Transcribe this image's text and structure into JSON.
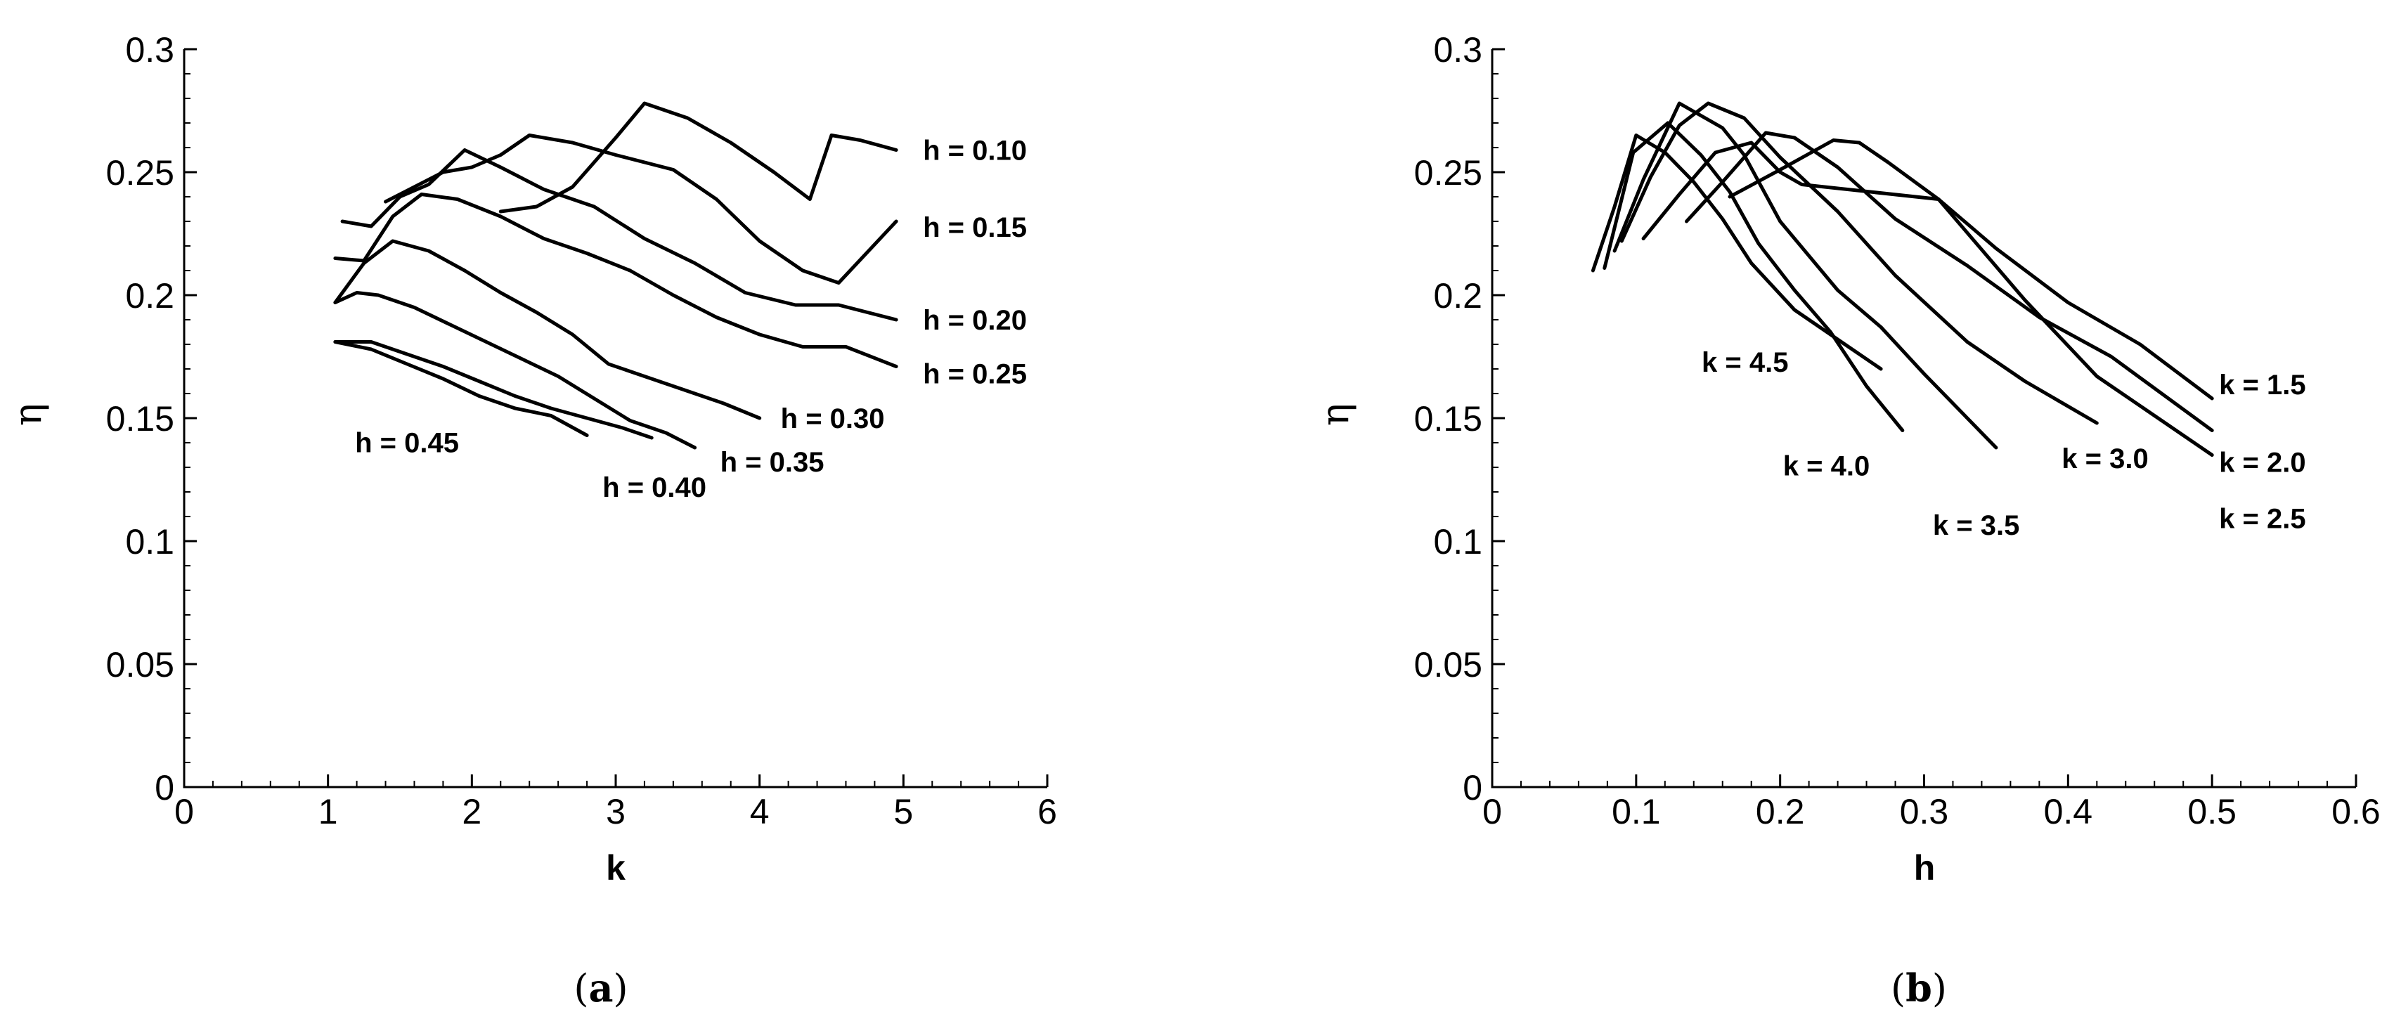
{
  "chart_data": [
    {
      "type": "line",
      "panel": "a",
      "caption": {
        "open": "(",
        "letter": "a",
        "close": ")"
      },
      "xlabel": "k",
      "ylabel": "η",
      "xlim": [
        0,
        6
      ],
      "ylim": [
        0,
        0.3
      ],
      "x_ticks": [
        "0",
        "1",
        "2",
        "3",
        "4",
        "5",
        "6"
      ],
      "y_ticks": [
        "0",
        "0.05",
        "0.1",
        "0.15",
        "0.2",
        "0.25",
        "0.3"
      ],
      "grid": false,
      "series": [
        {
          "name": "h = 0.10",
          "label": "h = 0.10",
          "x": [
            2.2,
            2.45,
            2.7,
            3.0,
            3.2,
            3.5,
            3.8,
            4.1,
            4.35,
            4.5,
            4.7,
            4.95
          ],
          "y": [
            0.234,
            0.236,
            0.244,
            0.264,
            0.278,
            0.272,
            0.262,
            0.25,
            0.239,
            0.265,
            0.263,
            0.259
          ]
        },
        {
          "name": "h = 0.15",
          "label": "h = 0.15",
          "x": [
            1.4,
            1.6,
            1.8,
            2.0,
            2.2,
            2.4,
            2.7,
            3.0,
            3.4,
            3.7,
            4.0,
            4.3,
            4.55,
            4.95
          ],
          "y": [
            0.238,
            0.244,
            0.25,
            0.252,
            0.257,
            0.265,
            0.262,
            0.257,
            0.251,
            0.239,
            0.222,
            0.21,
            0.205,
            0.23
          ]
        },
        {
          "name": "h = 0.20",
          "label": "h = 0.20",
          "x": [
            1.1,
            1.3,
            1.5,
            1.7,
            1.95,
            2.2,
            2.5,
            2.85,
            3.2,
            3.55,
            3.9,
            4.25,
            4.55,
            4.95
          ],
          "y": [
            0.23,
            0.228,
            0.24,
            0.245,
            0.259,
            0.252,
            0.243,
            0.236,
            0.223,
            0.213,
            0.201,
            0.196,
            0.196,
            0.19
          ]
        },
        {
          "name": "h = 0.25",
          "label": "h = 0.25",
          "x": [
            1.05,
            1.25,
            1.45,
            1.65,
            1.9,
            2.2,
            2.5,
            2.8,
            3.1,
            3.4,
            3.7,
            4.0,
            4.3,
            4.6,
            4.95
          ],
          "y": [
            0.215,
            0.214,
            0.232,
            0.241,
            0.239,
            0.232,
            0.223,
            0.217,
            0.21,
            0.2,
            0.191,
            0.184,
            0.179,
            0.179,
            0.171
          ]
        },
        {
          "name": "h = 0.30",
          "label": "h = 0.30",
          "x": [
            1.05,
            1.25,
            1.45,
            1.7,
            1.95,
            2.2,
            2.45,
            2.7,
            2.95,
            3.2,
            3.5,
            3.75,
            4.0
          ],
          "y": [
            0.197,
            0.213,
            0.222,
            0.218,
            0.21,
            0.201,
            0.193,
            0.184,
            0.172,
            0.167,
            0.161,
            0.156,
            0.15
          ]
        },
        {
          "name": "h = 0.35",
          "label": "h = 0.35",
          "x": [
            1.05,
            1.2,
            1.35,
            1.6,
            1.85,
            2.1,
            2.35,
            2.6,
            2.85,
            3.1,
            3.35,
            3.55
          ],
          "y": [
            0.197,
            0.201,
            0.2,
            0.195,
            0.188,
            0.181,
            0.174,
            0.167,
            0.158,
            0.149,
            0.144,
            0.138
          ]
        },
        {
          "name": "h = 0.40",
          "label": "h = 0.40",
          "x": [
            1.05,
            1.3,
            1.55,
            1.8,
            2.05,
            2.3,
            2.55,
            2.8,
            3.05,
            3.25
          ],
          "y": [
            0.181,
            0.181,
            0.176,
            0.171,
            0.165,
            0.159,
            0.154,
            0.15,
            0.146,
            0.142
          ]
        },
        {
          "name": "h = 0.45",
          "label": "h = 0.45",
          "x": [
            1.05,
            1.3,
            1.55,
            1.8,
            2.05,
            2.3,
            2.55,
            2.8
          ],
          "y": [
            0.181,
            0.178,
            0.172,
            0.166,
            0.159,
            0.154,
            0.151,
            0.143
          ]
        }
      ]
    },
    {
      "type": "line",
      "panel": "b",
      "caption": {
        "open": "(",
        "letter": "b",
        "close": ")"
      },
      "xlabel": "h",
      "ylabel": "η",
      "xlim": [
        0,
        0.6
      ],
      "ylim": [
        0,
        0.3
      ],
      "x_ticks": [
        "0",
        "0.1",
        "0.2",
        "0.3",
        "0.4",
        "0.5",
        "0.6"
      ],
      "y_ticks": [
        "0",
        "0.05",
        "0.1",
        "0.15",
        "0.2",
        "0.25",
        "0.3"
      ],
      "grid": false,
      "series": [
        {
          "name": "k = 1.5",
          "label": "k = 1.5",
          "x": [
            0.165,
            0.2,
            0.237,
            0.255,
            0.275,
            0.31,
            0.35,
            0.4,
            0.45,
            0.5
          ],
          "y": [
            0.24,
            0.251,
            0.263,
            0.262,
            0.254,
            0.239,
            0.219,
            0.197,
            0.18,
            0.158
          ]
        },
        {
          "name": "k = 2.0",
          "label": "k = 2.0",
          "x": [
            0.135,
            0.16,
            0.19,
            0.21,
            0.24,
            0.28,
            0.33,
            0.38,
            0.43,
            0.5
          ],
          "y": [
            0.23,
            0.246,
            0.266,
            0.264,
            0.252,
            0.231,
            0.212,
            0.191,
            0.175,
            0.145
          ]
        },
        {
          "name": "k = 2.5",
          "label": "k = 2.5",
          "x": [
            0.105,
            0.13,
            0.155,
            0.18,
            0.2,
            0.215,
            0.31,
            0.37,
            0.42,
            0.5
          ],
          "y": [
            0.223,
            0.241,
            0.258,
            0.262,
            0.25,
            0.245,
            0.239,
            0.198,
            0.167,
            0.135
          ]
        },
        {
          "name": "k = 3.0",
          "label": "k = 3.0",
          "x": [
            0.09,
            0.11,
            0.13,
            0.15,
            0.175,
            0.2,
            0.24,
            0.28,
            0.33,
            0.37,
            0.42
          ],
          "y": [
            0.222,
            0.248,
            0.269,
            0.278,
            0.272,
            0.256,
            0.234,
            0.208,
            0.181,
            0.165,
            0.148
          ]
        },
        {
          "name": "k = 3.5",
          "label": "k = 3.5",
          "x": [
            0.085,
            0.105,
            0.13,
            0.16,
            0.175,
            0.2,
            0.24,
            0.27,
            0.3,
            0.32,
            0.35
          ],
          "y": [
            0.218,
            0.247,
            0.278,
            0.268,
            0.257,
            0.23,
            0.202,
            0.187,
            0.168,
            0.156,
            0.138
          ]
        },
        {
          "name": "k = 4.0",
          "label": "k = 4.0",
          "x": [
            0.078,
            0.098,
            0.122,
            0.145,
            0.165,
            0.185,
            0.21,
            0.235,
            0.26,
            0.285
          ],
          "y": [
            0.211,
            0.258,
            0.27,
            0.257,
            0.242,
            0.221,
            0.202,
            0.185,
            0.163,
            0.145
          ]
        },
        {
          "name": "k = 4.5",
          "label": "k = 4.5",
          "x": [
            0.07,
            0.085,
            0.1,
            0.12,
            0.14,
            0.16,
            0.18,
            0.21,
            0.245,
            0.27
          ],
          "y": [
            0.21,
            0.236,
            0.265,
            0.258,
            0.246,
            0.231,
            0.213,
            0.194,
            0.18,
            0.17
          ]
        }
      ]
    }
  ]
}
